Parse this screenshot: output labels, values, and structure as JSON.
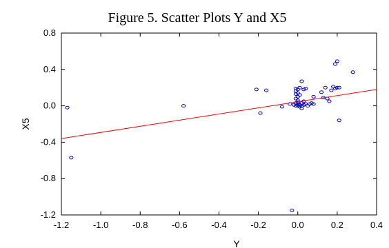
{
  "chart_data": {
    "type": "scatter",
    "title": "Figure 5. Scatter Plots Y and X5",
    "xlabel": "Y",
    "ylabel": "X5",
    "xlim": [
      -1.2,
      0.4
    ],
    "ylim": [
      -1.2,
      0.8
    ],
    "x_ticks": [
      -1.2,
      -1.0,
      -0.8,
      -0.6,
      -0.4,
      -0.2,
      0.0,
      0.2,
      0.4
    ],
    "x_tick_labels": [
      "-1.2",
      "-1.0",
      "-0.8",
      "-0.6",
      "-0.4",
      "-0.2",
      "0.0",
      "0.2",
      "0.4"
    ],
    "y_ticks": [
      -1.2,
      -0.8,
      -0.4,
      0.0,
      0.4,
      0.8
    ],
    "y_tick_labels": [
      "-1.2",
      "-0.8",
      "-0.4",
      "0.0",
      "0.4",
      "0.8"
    ],
    "grid": false,
    "colors": {
      "points": "#0000cc",
      "fit_line": "#ff0000"
    },
    "points": [
      [
        -1.17,
        -0.02
      ],
      [
        -1.15,
        -0.57
      ],
      [
        -0.58,
        0.0
      ],
      [
        -0.21,
        0.18
      ],
      [
        -0.19,
        -0.08
      ],
      [
        -0.16,
        0.17
      ],
      [
        -0.08,
        -0.01
      ],
      [
        -0.04,
        0.02
      ],
      [
        -0.03,
        -1.15
      ],
      [
        -0.02,
        0.01
      ],
      [
        -0.01,
        0.08
      ],
      [
        -0.01,
        0.03
      ],
      [
        -0.01,
        0.0
      ],
      [
        -0.01,
        0.13
      ],
      [
        -0.01,
        0.16
      ],
      [
        -0.01,
        0.19
      ],
      [
        0.0,
        0.04
      ],
      [
        0.0,
        0.02
      ],
      [
        0.0,
        0.0
      ],
      [
        0.0,
        0.1
      ],
      [
        0.0,
        0.14
      ],
      [
        0.0,
        0.18
      ],
      [
        0.0,
        0.06
      ],
      [
        0.01,
        0.01
      ],
      [
        0.01,
        -0.01
      ],
      [
        0.01,
        0.2
      ],
      [
        0.01,
        0.12
      ],
      [
        0.02,
        0.0
      ],
      [
        0.02,
        0.03
      ],
      [
        0.02,
        0.27
      ],
      [
        0.02,
        -0.03
      ],
      [
        0.03,
        0.05
      ],
      [
        0.03,
        0.01
      ],
      [
        0.03,
        0.18
      ],
      [
        0.04,
        0.02
      ],
      [
        0.04,
        0.19
      ],
      [
        0.05,
        0.0
      ],
      [
        0.06,
        0.02
      ],
      [
        0.07,
        0.03
      ],
      [
        0.08,
        0.02
      ],
      [
        0.08,
        0.1
      ],
      [
        0.12,
        0.15
      ],
      [
        0.13,
        0.09
      ],
      [
        0.14,
        0.2
      ],
      [
        0.15,
        0.08
      ],
      [
        0.16,
        0.05
      ],
      [
        0.17,
        0.17
      ],
      [
        0.18,
        0.21
      ],
      [
        0.19,
        0.19
      ],
      [
        0.19,
        0.46
      ],
      [
        0.2,
        0.49
      ],
      [
        0.2,
        0.2
      ],
      [
        0.21,
        0.2
      ],
      [
        0.21,
        -0.16
      ],
      [
        0.28,
        0.37
      ]
    ],
    "fit_line": {
      "x": [
        -1.2,
        0.4
      ],
      "y": [
        -0.36,
        0.18
      ]
    }
  }
}
